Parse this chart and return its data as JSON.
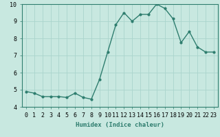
{
  "x": [
    0,
    1,
    2,
    3,
    4,
    5,
    6,
    7,
    8,
    9,
    10,
    11,
    12,
    13,
    14,
    15,
    16,
    17,
    18,
    19,
    20,
    21,
    22,
    23
  ],
  "y": [
    4.9,
    4.8,
    4.6,
    4.6,
    4.6,
    4.55,
    4.8,
    4.55,
    4.45,
    5.6,
    7.2,
    8.8,
    9.5,
    9.0,
    9.4,
    9.4,
    10.0,
    9.75,
    9.15,
    7.75,
    8.4,
    7.5,
    7.2,
    7.2
  ],
  "line_color": "#2e7d6e",
  "marker": "o",
  "marker_size": 2,
  "linewidth": 1.0,
  "bg_color": "#c8e8e0",
  "grid_color": "#aad4cc",
  "xlabel": "Humidex (Indice chaleur)",
  "ylim": [
    4,
    10
  ],
  "xlim_min": -0.5,
  "xlim_max": 23.5,
  "yticks": [
    4,
    5,
    6,
    7,
    8,
    9,
    10
  ],
  "xticks": [
    0,
    1,
    2,
    3,
    4,
    5,
    6,
    7,
    8,
    9,
    10,
    11,
    12,
    13,
    14,
    15,
    16,
    17,
    18,
    19,
    20,
    21,
    22,
    23
  ],
  "xlabel_fontsize": 6.5,
  "tick_fontsize": 6.0
}
